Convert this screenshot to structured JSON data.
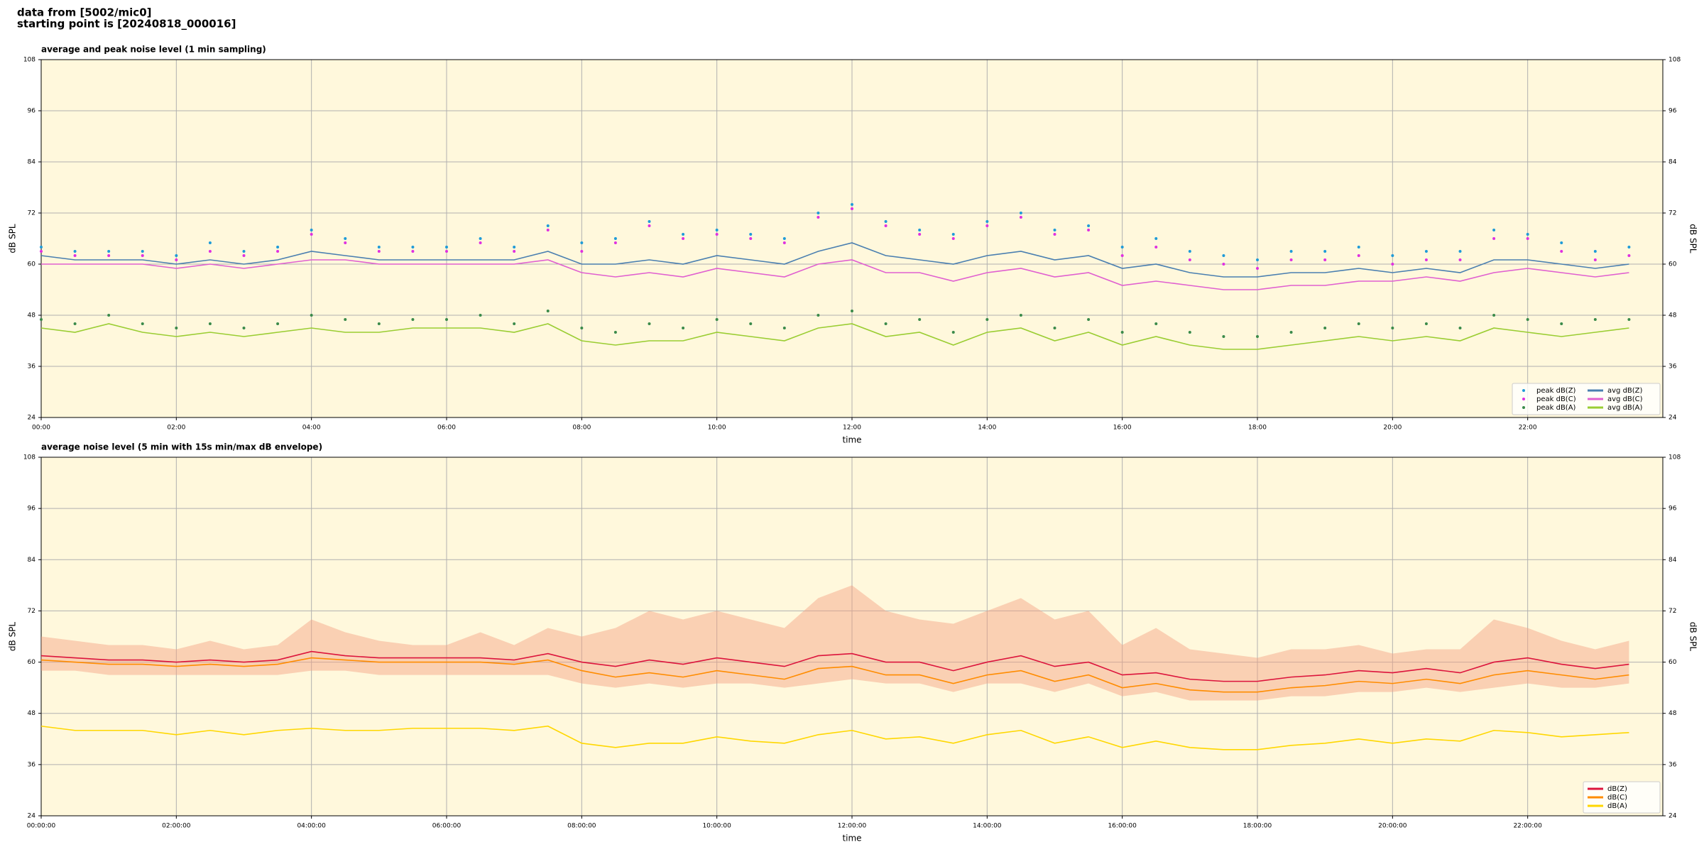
{
  "header": {
    "line1": "data from [5002/mic0]",
    "line2": "starting point is [20240818_000016]"
  },
  "chart_data": [
    {
      "type": "line",
      "title": "average and peak noise level (1 min sampling)",
      "x_label": "time",
      "y_label": "dB SPL",
      "x": [
        0,
        0.5,
        1,
        1.5,
        2,
        2.5,
        3,
        3.5,
        4,
        4.5,
        5,
        5.5,
        6,
        6.5,
        7,
        7.5,
        8,
        8.5,
        9,
        9.5,
        10,
        10.5,
        11,
        11.5,
        12,
        12.5,
        13,
        13.5,
        14,
        14.5,
        15,
        15.5,
        16,
        16.5,
        17,
        17.5,
        18,
        18.5,
        19,
        19.5,
        20,
        20.5,
        21,
        21.5,
        22,
        22.5,
        23,
        23.5
      ],
      "xlim": [
        0,
        24
      ],
      "ylim": [
        24,
        108
      ],
      "yticks": [
        24,
        36,
        48,
        60,
        72,
        84,
        96,
        108
      ],
      "xticks": [
        {
          "value": 0,
          "label": "00:00"
        },
        {
          "value": 2,
          "label": "02:00"
        },
        {
          "value": 4,
          "label": "04:00"
        },
        {
          "value": 6,
          "label": "06:00"
        },
        {
          "value": 8,
          "label": "08:00"
        },
        {
          "value": 10,
          "label": "10:00"
        },
        {
          "value": 12,
          "label": "12:00"
        },
        {
          "value": 14,
          "label": "14:00"
        },
        {
          "value": 16,
          "label": "16:00"
        },
        {
          "value": 18,
          "label": "18:00"
        },
        {
          "value": 20,
          "label": "20:00"
        },
        {
          "value": 22,
          "label": "22:00"
        }
      ],
      "grid": true,
      "legend": "lower right",
      "legend_columns": 2,
      "series": [
        {
          "name": "peak dB(Z)",
          "color": "#1f9bd8",
          "mode": "markers",
          "values": [
            64,
            63,
            63,
            63,
            62,
            65,
            63,
            64,
            68,
            66,
            64,
            64,
            64,
            66,
            64,
            69,
            65,
            66,
            70,
            67,
            68,
            67,
            66,
            72,
            74,
            70,
            68,
            67,
            70,
            72,
            68,
            69,
            64,
            66,
            63,
            62,
            61,
            63,
            63,
            64,
            62,
            63,
            63,
            68,
            67,
            65,
            63,
            64
          ]
        },
        {
          "name": "peak dB(C)",
          "color": "#e030e0",
          "mode": "markers",
          "values": [
            63,
            62,
            62,
            62,
            61,
            63,
            62,
            63,
            67,
            65,
            63,
            63,
            63,
            65,
            63,
            68,
            63,
            65,
            69,
            66,
            67,
            66,
            65,
            71,
            73,
            69,
            67,
            66,
            69,
            71,
            67,
            68,
            62,
            64,
            61,
            60,
            59,
            61,
            61,
            62,
            60,
            61,
            61,
            66,
            66,
            63,
            61,
            62
          ]
        },
        {
          "name": "peak dB(A)",
          "color": "#3a8a4a",
          "mode": "markers",
          "values": [
            47,
            46,
            48,
            46,
            45,
            46,
            45,
            46,
            48,
            47,
            46,
            47,
            47,
            48,
            46,
            49,
            45,
            44,
            46,
            45,
            47,
            46,
            45,
            48,
            49,
            46,
            47,
            44,
            47,
            48,
            45,
            47,
            44,
            46,
            44,
            43,
            43,
            44,
            45,
            46,
            45,
            46,
            45,
            48,
            47,
            46,
            47,
            47
          ]
        },
        {
          "name": "avg dB(Z)",
          "color": "#4a7fb0",
          "mode": "lines",
          "values": [
            62,
            61,
            61,
            61,
            60,
            61,
            60,
            61,
            63,
            62,
            61,
            61,
            61,
            61,
            61,
            63,
            60,
            60,
            61,
            60,
            62,
            61,
            60,
            63,
            65,
            62,
            61,
            60,
            62,
            63,
            61,
            62,
            59,
            60,
            58,
            57,
            57,
            58,
            58,
            59,
            58,
            59,
            58,
            61,
            61,
            60,
            59,
            60
          ]
        },
        {
          "name": "avg dB(C)",
          "color": "#e060d0",
          "mode": "lines",
          "values": [
            60,
            60,
            60,
            60,
            59,
            60,
            59,
            60,
            61,
            61,
            60,
            60,
            60,
            60,
            60,
            61,
            58,
            57,
            58,
            57,
            59,
            58,
            57,
            60,
            61,
            58,
            58,
            56,
            58,
            59,
            57,
            58,
            55,
            56,
            55,
            54,
            54,
            55,
            55,
            56,
            56,
            57,
            56,
            58,
            59,
            58,
            57,
            58
          ]
        },
        {
          "name": "avg dB(A)",
          "color": "#9acd32",
          "mode": "lines",
          "values": [
            45,
            44,
            46,
            44,
            43,
            44,
            43,
            44,
            45,
            44,
            44,
            45,
            45,
            45,
            44,
            46,
            42,
            41,
            42,
            42,
            44,
            43,
            42,
            45,
            46,
            43,
            44,
            41,
            44,
            45,
            42,
            44,
            41,
            43,
            41,
            40,
            40,
            41,
            42,
            43,
            42,
            43,
            42,
            45,
            44,
            43,
            44,
            45
          ]
        }
      ]
    },
    {
      "type": "line",
      "title": "average noise level (5 min with 15s min/max dB envelope)",
      "x_label": "time",
      "y_label": "dB SPL",
      "x": [
        0,
        0.5,
        1,
        1.5,
        2,
        2.5,
        3,
        3.5,
        4,
        4.5,
        5,
        5.5,
        6,
        6.5,
        7,
        7.5,
        8,
        8.5,
        9,
        9.5,
        10,
        10.5,
        11,
        11.5,
        12,
        12.5,
        13,
        13.5,
        14,
        14.5,
        15,
        15.5,
        16,
        16.5,
        17,
        17.5,
        18,
        18.5,
        19,
        19.5,
        20,
        20.5,
        21,
        21.5,
        22,
        22.5,
        23,
        23.5
      ],
      "xlim": [
        0,
        24
      ],
      "ylim": [
        24,
        108
      ],
      "yticks": [
        24,
        36,
        48,
        60,
        72,
        84,
        96,
        108
      ],
      "xticks": [
        {
          "value": 0,
          "label": "00:00:00"
        },
        {
          "value": 2,
          "label": "02:00:00"
        },
        {
          "value": 4,
          "label": "04:00:00"
        },
        {
          "value": 6,
          "label": "06:00:00"
        },
        {
          "value": 8,
          "label": "08:00:00"
        },
        {
          "value": 10,
          "label": "10:00:00"
        },
        {
          "value": 12,
          "label": "12:00:00"
        },
        {
          "value": 14,
          "label": "14:00:00"
        },
        {
          "value": 16,
          "label": "16:00:00"
        },
        {
          "value": 18,
          "label": "18:00:00"
        },
        {
          "value": 20,
          "label": "20:00:00"
        },
        {
          "value": 22,
          "label": "22:00:00"
        }
      ],
      "grid": true,
      "legend": "lower right",
      "legend_columns": 1,
      "envelope": {
        "color": "#f4a080",
        "low": [
          58,
          58,
          57,
          57,
          57,
          57,
          57,
          57,
          58,
          58,
          57,
          57,
          57,
          57,
          57,
          57,
          55,
          54,
          55,
          54,
          55,
          55,
          54,
          55,
          56,
          55,
          55,
          53,
          55,
          55,
          53,
          55,
          52,
          53,
          51,
          51,
          51,
          52,
          52,
          53,
          53,
          54,
          53,
          54,
          55,
          54,
          54,
          55
        ],
        "high": [
          66,
          65,
          64,
          64,
          63,
          65,
          63,
          64,
          70,
          67,
          65,
          64,
          64,
          67,
          64,
          68,
          66,
          68,
          72,
          70,
          72,
          70,
          68,
          75,
          78,
          72,
          70,
          69,
          72,
          75,
          70,
          72,
          64,
          68,
          63,
          62,
          61,
          63,
          63,
          64,
          62,
          63,
          63,
          70,
          68,
          65,
          63,
          65
        ]
      },
      "series": [
        {
          "name": "dB(Z)",
          "color": "#dc143c",
          "mode": "lines",
          "values": [
            61.5,
            61,
            60.5,
            60.5,
            60,
            60.5,
            60,
            60.5,
            62.5,
            61.5,
            61,
            61,
            61,
            61,
            60.5,
            62,
            60,
            59,
            60.5,
            59.5,
            61,
            60,
            59,
            61.5,
            62,
            60,
            60,
            58,
            60,
            61.5,
            59,
            60,
            57,
            57.5,
            56,
            55.5,
            55.5,
            56.5,
            57,
            58,
            57.5,
            58.5,
            57.5,
            60,
            61,
            59.5,
            58.5,
            59.5
          ]
        },
        {
          "name": "dB(C)",
          "color": "#ff8c00",
          "mode": "lines",
          "values": [
            60.5,
            60,
            59.5,
            59.5,
            59,
            59.5,
            59,
            59.5,
            61,
            60.5,
            60,
            60,
            60,
            60,
            59.5,
            60.5,
            58,
            56.5,
            57.5,
            56.5,
            58,
            57,
            56,
            58.5,
            59,
            57,
            57,
            55,
            57,
            58,
            55.5,
            57,
            54,
            55,
            53.5,
            53,
            53,
            54,
            54.5,
            55.5,
            55,
            56,
            55,
            57,
            58,
            57,
            56,
            57
          ]
        },
        {
          "name": "dB(A)",
          "color": "#ffd700",
          "mode": "lines",
          "values": [
            45,
            44,
            44,
            44,
            43,
            44,
            43,
            44,
            44.5,
            44,
            44,
            44.5,
            44.5,
            44.5,
            44,
            45,
            41,
            40,
            41,
            41,
            42.5,
            41.5,
            41,
            43,
            44,
            42,
            42.5,
            41,
            43,
            44,
            41,
            42.5,
            40,
            41.5,
            40,
            39.5,
            39.5,
            40.5,
            41,
            42,
            41,
            42,
            41.5,
            44,
            43.5,
            42.5,
            43,
            43.5
          ]
        }
      ]
    }
  ]
}
